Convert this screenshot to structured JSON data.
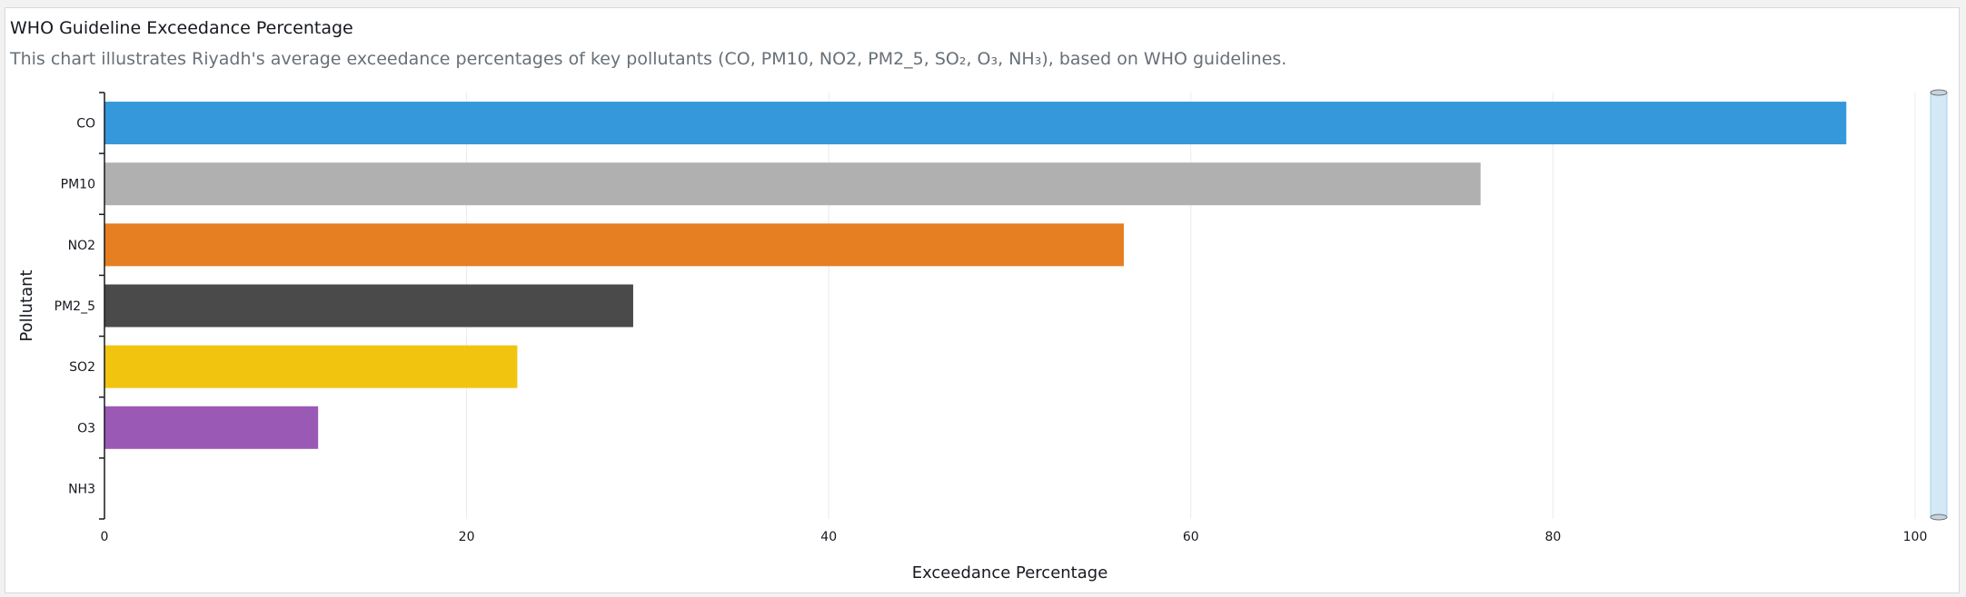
{
  "header": {
    "title": "WHO Guideline Exceedance Percentage",
    "subtitle": "This chart illustrates Riyadh's average exceedance percentages of key pollutants (CO, PM10, NO2, PM2_5, SO₂, O₃, NH₃), based on WHO guidelines."
  },
  "chart_data": {
    "type": "bar",
    "orientation": "horizontal",
    "categories": [
      "CO",
      "PM10",
      "NO2",
      "PM2_5",
      "SO2",
      "O3",
      "NH3"
    ],
    "values": [
      96.2,
      76.0,
      56.3,
      29.2,
      22.8,
      11.8,
      0
    ],
    "colors": [
      "#3498db",
      "#b0b0b0",
      "#e67e22",
      "#4a4a4a",
      "#f1c40f",
      "#9b59b6",
      "#1abc9c"
    ],
    "xlabel": "Exceedance Percentage",
    "ylabel": "Pollutant",
    "xlim": [
      0,
      100
    ],
    "xticks": [
      0,
      20,
      40,
      60,
      80,
      100
    ],
    "grid": true,
    "scroll_range": [
      0,
      1
    ]
  }
}
